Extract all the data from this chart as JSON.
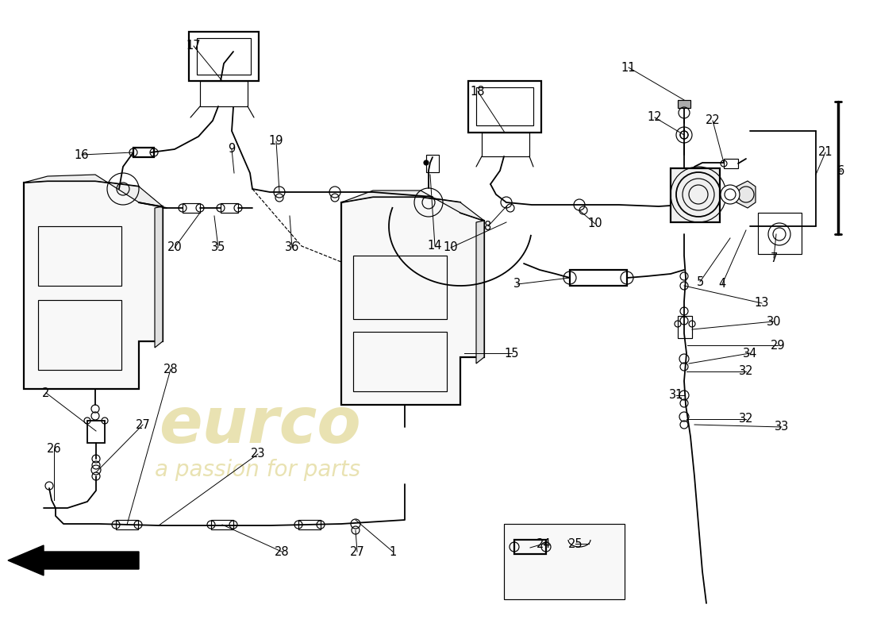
{
  "bg_color": "#ffffff",
  "lc": "#000000",
  "wm_color": "#c8b840",
  "wm_alpha": 0.4,
  "wm_text1": "eurco",
  "wm_text2": "a passion for parts",
  "lw": 1.3,
  "lt": 0.85,
  "lk": 1.6,
  "fs": 10.5
}
